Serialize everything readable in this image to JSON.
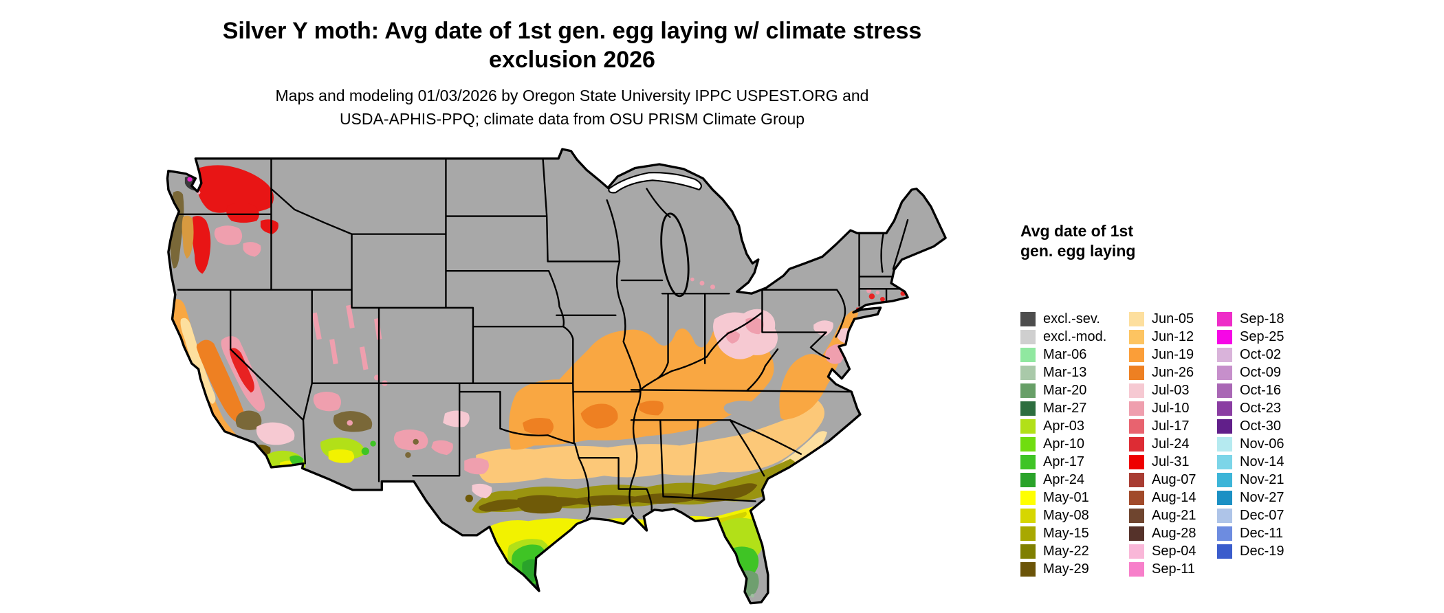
{
  "title": {
    "line1": "Silver Y moth: Avg date of 1st gen. egg laying w/ climate stress",
    "line2": "exclusion 2026"
  },
  "subtitle": {
    "line1": "Maps and modeling 01/03/2026 by Oregon State University IPPC USPEST.ORG and",
    "line2": "USDA-APHIS-PPQ; climate data from OSU PRISM Climate Group"
  },
  "legend": {
    "title": {
      "line1": "Avg date of 1st",
      "line2": "gen. egg laying"
    },
    "columns": [
      {
        "entries": [
          {
            "label": "excl.-sev.",
            "color": "#4d4d4d"
          },
          {
            "label": "excl.-mod.",
            "color": "#cfcfcf"
          },
          {
            "label": "Mar-06",
            "color": "#90e8a0"
          },
          {
            "label": "Mar-13",
            "color": "#a9c9a9"
          },
          {
            "label": "Mar-20",
            "color": "#679f67"
          },
          {
            "label": "Mar-27",
            "color": "#2d6e3f"
          },
          {
            "label": "Apr-03",
            "color": "#b2e018"
          },
          {
            "label": "Apr-10",
            "color": "#70dd10"
          },
          {
            "label": "Apr-17",
            "color": "#3fc425"
          },
          {
            "label": "Apr-24",
            "color": "#2aa32a"
          },
          {
            "label": "May-01",
            "color": "#ffff00"
          },
          {
            "label": "May-08",
            "color": "#d6d600"
          },
          {
            "label": "May-15",
            "color": "#a8a800"
          },
          {
            "label": "May-22",
            "color": "#7f7f00"
          },
          {
            "label": "May-29",
            "color": "#6b5408"
          }
        ]
      },
      {
        "entries": [
          {
            "label": "Jun-05",
            "color": "#fddf9e"
          },
          {
            "label": "Jun-12",
            "color": "#fdc461"
          },
          {
            "label": "Jun-19",
            "color": "#fb9e38"
          },
          {
            "label": "Jun-26",
            "color": "#ee8022"
          },
          {
            "label": "Jul-03",
            "color": "#f6c9d2"
          },
          {
            "label": "Jul-10",
            "color": "#ef9fae"
          },
          {
            "label": "Jul-17",
            "color": "#e8636f"
          },
          {
            "label": "Jul-24",
            "color": "#dd2c34"
          },
          {
            "label": "Jul-31",
            "color": "#ee0000"
          },
          {
            "label": "Aug-07",
            "color": "#a83c32"
          },
          {
            "label": "Aug-14",
            "color": "#a14a2a"
          },
          {
            "label": "Aug-21",
            "color": "#6f452f"
          },
          {
            "label": "Aug-28",
            "color": "#55322a"
          },
          {
            "label": "Sep-04",
            "color": "#f9b7d8"
          },
          {
            "label": "Sep-11",
            "color": "#f77fca"
          }
        ]
      },
      {
        "entries": [
          {
            "label": "Sep-18",
            "color": "#ee2cc8"
          },
          {
            "label": "Sep-25",
            "color": "#f607e6"
          },
          {
            "label": "Oct-02",
            "color": "#d9b3da"
          },
          {
            "label": "Oct-09",
            "color": "#c68fcb"
          },
          {
            "label": "Oct-16",
            "color": "#a967b5"
          },
          {
            "label": "Oct-23",
            "color": "#8a3da2"
          },
          {
            "label": "Oct-30",
            "color": "#611f8a"
          },
          {
            "label": "Nov-06",
            "color": "#b5eaf0"
          },
          {
            "label": "Nov-14",
            "color": "#7cd5e8"
          },
          {
            "label": "Nov-21",
            "color": "#3cb5d8"
          },
          {
            "label": "Nov-27",
            "color": "#1b90c4"
          },
          {
            "label": "Dec-07",
            "color": "#aec4e8"
          },
          {
            "label": "Dec-11",
            "color": "#6d8ce0"
          },
          {
            "label": "Dec-19",
            "color": "#3a5ccc"
          }
        ]
      }
    ]
  },
  "map": {
    "name": "contiguous-us-egg-laying-date-map",
    "base_land_color": "#a8a8a8",
    "border_color": "#000000",
    "background_color": "#ffffff"
  }
}
